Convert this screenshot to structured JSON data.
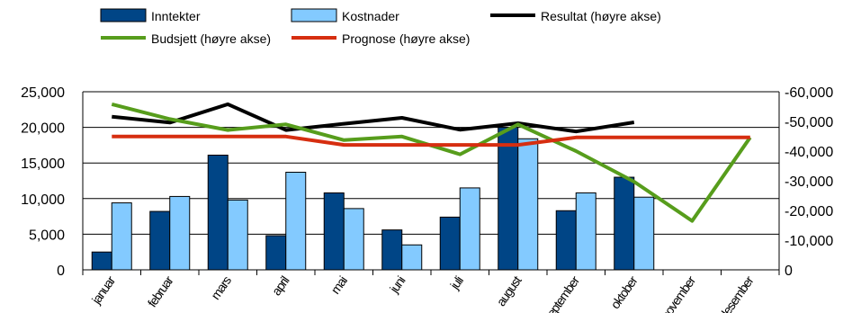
{
  "chart_data": {
    "type": "bar",
    "categories": [
      "januar",
      "februar",
      "mars",
      "april",
      "mai",
      "juni",
      "juli",
      "august",
      "september",
      "oktober",
      "november",
      "desember"
    ],
    "left_axis": {
      "ylim": [
        0,
        25000
      ],
      "ticks": [
        0,
        5000,
        10000,
        15000,
        20000,
        25000
      ],
      "tick_labels": [
        "0",
        "5,000",
        "10,000",
        "15,000",
        "20,000",
        "25,000"
      ]
    },
    "right_axis": {
      "ylim": [
        0,
        -60000
      ],
      "ticks": [
        0,
        -10000,
        -20000,
        -30000,
        -40000,
        -50000,
        -60000
      ],
      "tick_labels": [
        "0",
        "-10,000",
        "-20,000",
        "-30,000",
        "-40,000",
        "-50,000",
        "-60,000"
      ]
    },
    "grid": true,
    "legend_position": "top",
    "bar_series": [
      {
        "name": "Inntekter",
        "color": "#004586",
        "values": [
          2500,
          8200,
          16100,
          4800,
          10800,
          5600,
          7400,
          20000,
          8300,
          13000,
          null,
          null
        ]
      },
      {
        "name": "Kostnader",
        "color": "#83caff",
        "values": [
          9400,
          10300,
          9800,
          13700,
          8600,
          3500,
          11500,
          18400,
          10800,
          10200,
          null,
          null
        ]
      }
    ],
    "line_series": [
      {
        "name": "Resultat (høyre akse)",
        "color": "#000000",
        "axis": "right",
        "values": [
          -51600,
          -49600,
          -55800,
          -47100,
          -49200,
          -51200,
          -47200,
          -49400,
          -46600,
          -49700,
          null,
          null
        ]
      },
      {
        "name": "Budsjett (høyre akse)",
        "color": "#579d1c",
        "axis": "right",
        "values": [
          -55800,
          -50800,
          -47100,
          -49000,
          -43700,
          -44900,
          -38900,
          -49000,
          -40000,
          -29700,
          -16500,
          -44600
        ]
      },
      {
        "name": "Prognose (høyre akse)",
        "color": "#d62e10",
        "axis": "right",
        "values": [
          -44900,
          -44900,
          -44900,
          -44900,
          -42100,
          -42100,
          -42100,
          -42100,
          -44600,
          -44600,
          -44600,
          -44600
        ]
      }
    ]
  }
}
